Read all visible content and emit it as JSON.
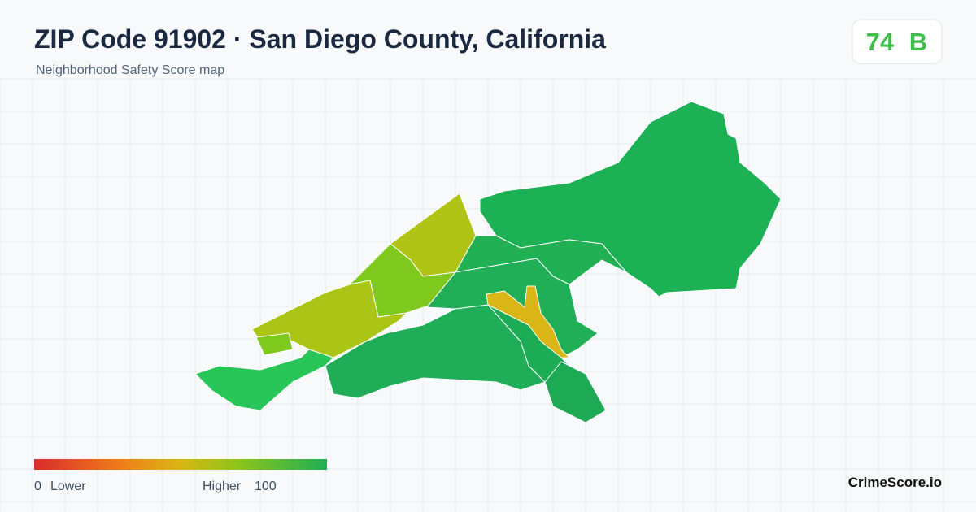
{
  "header": {
    "title": "ZIP Code 91902 · San Diego County, California",
    "subtitle": "Neighborhood Safety Score map"
  },
  "score": {
    "value": "74",
    "grade": "B"
  },
  "legend": {
    "min": "0",
    "min_label": "Lower",
    "max_label": "Higher",
    "max": "100"
  },
  "brand": "CrimeScore.io"
}
